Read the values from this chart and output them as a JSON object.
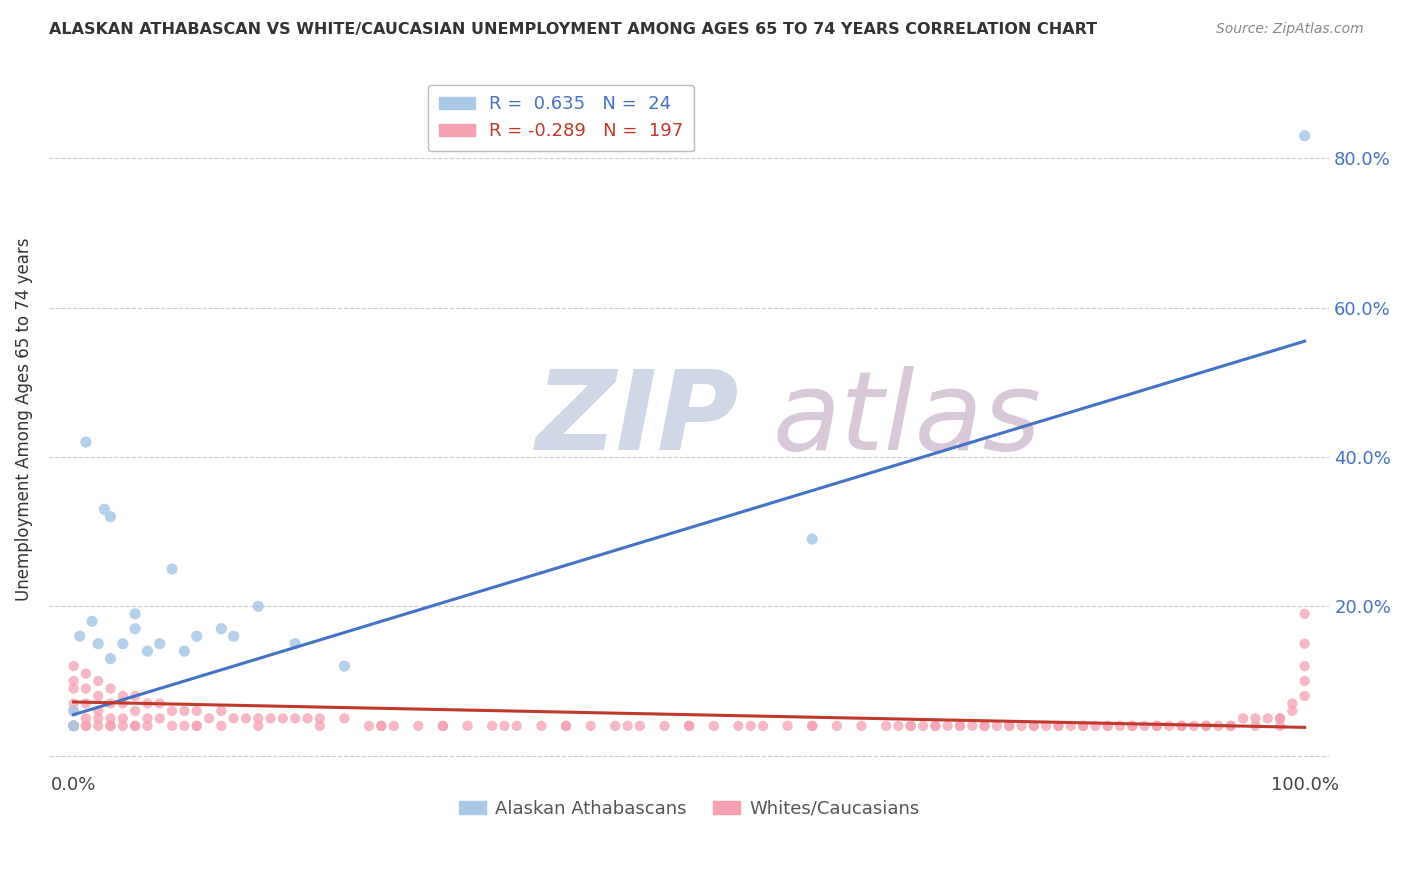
{
  "title": "ALASKAN ATHABASCAN VS WHITE/CAUCASIAN UNEMPLOYMENT AMONG AGES 65 TO 74 YEARS CORRELATION CHART",
  "source": "Source: ZipAtlas.com",
  "ylabel": "Unemployment Among Ages 65 to 74 years",
  "xlim": [
    -0.02,
    1.02
  ],
  "ylim": [
    -0.02,
    0.92
  ],
  "xticks": [
    0.0,
    0.1,
    0.2,
    0.3,
    0.4,
    0.5,
    0.6,
    0.7,
    0.8,
    0.9,
    1.0
  ],
  "ytick_positions": [
    0.0,
    0.2,
    0.4,
    0.6,
    0.8
  ],
  "ytick_labels": [
    "",
    "20.0%",
    "40.0%",
    "60.0%",
    "80.0%"
  ],
  "blue_R": 0.635,
  "blue_N": 24,
  "pink_R": -0.289,
  "pink_N": 197,
  "blue_color": "#a8c8e8",
  "pink_color": "#f4a0b0",
  "blue_line_color": "#4472c4",
  "pink_line_color": "#c0392b",
  "legend_label_blue": "Alaskan Athabascans",
  "legend_label_pink": "Whites/Caucasians",
  "blue_line_x0": 0.0,
  "blue_line_y0": 0.055,
  "blue_line_x1": 1.0,
  "blue_line_y1": 0.555,
  "pink_line_x0": 0.0,
  "pink_line_y0": 0.072,
  "pink_line_x1": 1.0,
  "pink_line_y1": 0.038,
  "blue_scatter_x": [
    0.0,
    0.0,
    0.005,
    0.01,
    0.015,
    0.02,
    0.025,
    0.03,
    0.04,
    0.05,
    0.06,
    0.08,
    0.1,
    0.12,
    0.15,
    0.18,
    0.22,
    0.6,
    1.0,
    0.03,
    0.05,
    0.07,
    0.09,
    0.13
  ],
  "blue_scatter_y": [
    0.06,
    0.04,
    0.16,
    0.42,
    0.18,
    0.15,
    0.33,
    0.13,
    0.15,
    0.17,
    0.14,
    0.25,
    0.16,
    0.17,
    0.2,
    0.15,
    0.12,
    0.29,
    0.83,
    0.32,
    0.19,
    0.15,
    0.14,
    0.16
  ],
  "pink_scatter_x": [
    0.0,
    0.0,
    0.0,
    0.0,
    0.0,
    0.01,
    0.01,
    0.01,
    0.01,
    0.01,
    0.02,
    0.02,
    0.02,
    0.02,
    0.03,
    0.03,
    0.03,
    0.03,
    0.04,
    0.04,
    0.04,
    0.04,
    0.05,
    0.05,
    0.05,
    0.06,
    0.06,
    0.06,
    0.07,
    0.07,
    0.08,
    0.08,
    0.09,
    0.09,
    0.1,
    0.1,
    0.11,
    0.12,
    0.12,
    0.13,
    0.14,
    0.15,
    0.16,
    0.17,
    0.18,
    0.19,
    0.2,
    0.22,
    0.24,
    0.25,
    0.26,
    0.28,
    0.3,
    0.32,
    0.34,
    0.36,
    0.38,
    0.4,
    0.42,
    0.44,
    0.46,
    0.48,
    0.5,
    0.52,
    0.54,
    0.56,
    0.58,
    0.6,
    0.62,
    0.64,
    0.66,
    0.68,
    0.7,
    0.72,
    0.74,
    0.76,
    0.78,
    0.8,
    0.82,
    0.84,
    0.86,
    0.88,
    0.9,
    0.92,
    0.94,
    0.96,
    0.98,
    1.0,
    1.0,
    1.0,
    1.0,
    1.0,
    0.99,
    0.99,
    0.98,
    0.98,
    0.97,
    0.96,
    0.95,
    0.94,
    0.93,
    0.92,
    0.91,
    0.9,
    0.89,
    0.88,
    0.87,
    0.86,
    0.85,
    0.84,
    0.83,
    0.82,
    0.81,
    0.8,
    0.79,
    0.78,
    0.77,
    0.76,
    0.75,
    0.74,
    0.73,
    0.72,
    0.71,
    0.7,
    0.69,
    0.68,
    0.67,
    0.6,
    0.55,
    0.5,
    0.45,
    0.4,
    0.35,
    0.3,
    0.25,
    0.2,
    0.15,
    0.1,
    0.05,
    0.03,
    0.02,
    0.01,
    0.0,
    0.0,
    0.0,
    0.0,
    0.0,
    0.0,
    0.0,
    0.0,
    0.0,
    0.0,
    0.0,
    0.0,
    0.0,
    0.0,
    0.0,
    0.0,
    0.0,
    0.0,
    0.0,
    0.0,
    0.0,
    0.0,
    0.0,
    0.0,
    0.0,
    0.0,
    0.0,
    0.0,
    0.0,
    0.0,
    0.0,
    0.0,
    0.0,
    0.0,
    0.0,
    0.0,
    0.0,
    0.0,
    0.0
  ],
  "pink_scatter_y": [
    0.12,
    0.1,
    0.09,
    0.07,
    0.06,
    0.11,
    0.09,
    0.07,
    0.05,
    0.04,
    0.1,
    0.08,
    0.06,
    0.05,
    0.09,
    0.07,
    0.05,
    0.04,
    0.08,
    0.07,
    0.05,
    0.04,
    0.08,
    0.06,
    0.04,
    0.07,
    0.05,
    0.04,
    0.07,
    0.05,
    0.06,
    0.04,
    0.06,
    0.04,
    0.06,
    0.04,
    0.05,
    0.06,
    0.04,
    0.05,
    0.05,
    0.05,
    0.05,
    0.05,
    0.05,
    0.05,
    0.05,
    0.05,
    0.04,
    0.04,
    0.04,
    0.04,
    0.04,
    0.04,
    0.04,
    0.04,
    0.04,
    0.04,
    0.04,
    0.04,
    0.04,
    0.04,
    0.04,
    0.04,
    0.04,
    0.04,
    0.04,
    0.04,
    0.04,
    0.04,
    0.04,
    0.04,
    0.04,
    0.04,
    0.04,
    0.04,
    0.04,
    0.04,
    0.04,
    0.04,
    0.04,
    0.04,
    0.04,
    0.04,
    0.04,
    0.04,
    0.04,
    0.19,
    0.15,
    0.12,
    0.1,
    0.08,
    0.07,
    0.06,
    0.05,
    0.05,
    0.05,
    0.05,
    0.05,
    0.04,
    0.04,
    0.04,
    0.04,
    0.04,
    0.04,
    0.04,
    0.04,
    0.04,
    0.04,
    0.04,
    0.04,
    0.04,
    0.04,
    0.04,
    0.04,
    0.04,
    0.04,
    0.04,
    0.04,
    0.04,
    0.04,
    0.04,
    0.04,
    0.04,
    0.04,
    0.04,
    0.04,
    0.04,
    0.04,
    0.04,
    0.04,
    0.04,
    0.04,
    0.04,
    0.04,
    0.04,
    0.04,
    0.04,
    0.04,
    0.04,
    0.04,
    0.04,
    0.04,
    0.04,
    0.04,
    0.04,
    0.04,
    0.04,
    0.04,
    0.04,
    0.04,
    0.04,
    0.04,
    0.04,
    0.04,
    0.04,
    0.04,
    0.04,
    0.04,
    0.04,
    0.04,
    0.04,
    0.04,
    0.04,
    0.04,
    0.04,
    0.04,
    0.04,
    0.04,
    0.04,
    0.04,
    0.04,
    0.04,
    0.04,
    0.04,
    0.04,
    0.04,
    0.04,
    0.04,
    0.04,
    0.04
  ]
}
